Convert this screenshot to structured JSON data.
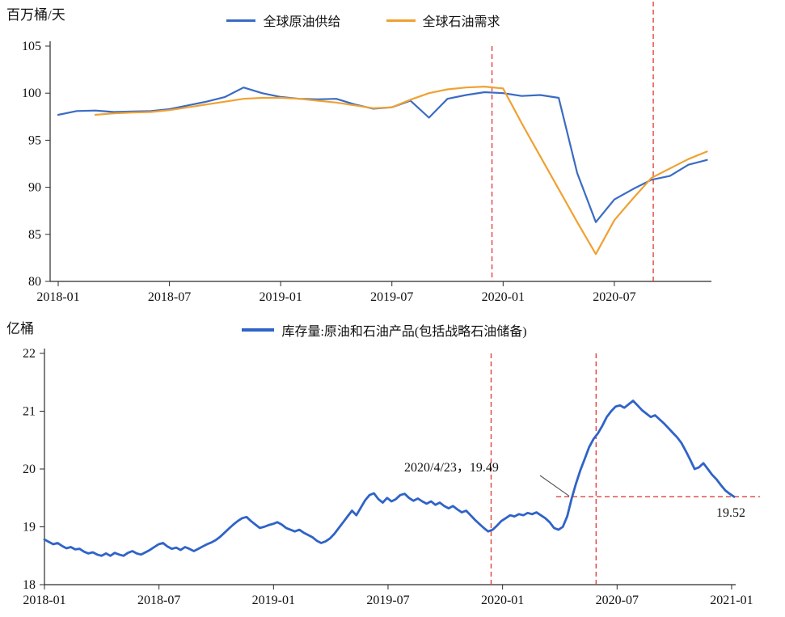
{
  "chart_data": [
    {
      "type": "line",
      "unit_label": "百万桶/天",
      "ylim": [
        80,
        105
      ],
      "yticks": [
        80,
        85,
        90,
        95,
        100,
        105
      ],
      "xticks": [
        {
          "month": 0,
          "label": "2018-01"
        },
        {
          "month": 6,
          "label": "2018-07"
        },
        {
          "month": 12,
          "label": "2019-01"
        },
        {
          "month": 18,
          "label": "2019-07"
        },
        {
          "month": 24,
          "label": "2020-01"
        },
        {
          "month": 30,
          "label": "2020-07"
        }
      ],
      "vline_color": "#e0433c",
      "vlines": [
        {
          "month": 23.4,
          "extends_above": false
        },
        {
          "month": 32.1,
          "extends_above": true
        }
      ],
      "series": [
        {
          "name": "全球原油供给",
          "color": "#3a6bc4",
          "start_month": 0,
          "values": [
            97.7,
            98.1,
            98.15,
            98.0,
            98.05,
            98.1,
            98.3,
            98.7,
            99.1,
            99.6,
            100.6,
            100.0,
            99.6,
            99.4,
            99.35,
            99.4,
            98.8,
            98.35,
            98.5,
            99.2,
            97.4,
            99.4,
            99.8,
            100.1,
            100.0,
            99.7,
            99.8,
            99.5,
            91.5,
            86.3,
            88.7,
            89.8,
            90.8,
            91.2,
            92.4,
            92.9
          ]
        },
        {
          "name": "全球石油需求",
          "color": "#f0a132",
          "start_month": 2,
          "values": [
            97.7,
            97.85,
            97.95,
            98.0,
            98.2,
            98.5,
            98.8,
            99.1,
            99.4,
            99.5,
            99.5,
            99.4,
            99.2,
            99.0,
            98.7,
            98.4,
            98.5,
            99.3,
            100.0,
            100.4,
            100.6,
            100.7,
            100.5,
            96.8,
            93.3,
            89.8,
            86.3,
            82.9,
            86.5,
            88.8,
            91.0,
            92.0,
            93.0,
            93.8
          ]
        }
      ]
    },
    {
      "type": "line",
      "unit_label": "亿桶",
      "ylim": [
        18,
        22
      ],
      "yticks": [
        18,
        19,
        20,
        21,
        22
      ],
      "xticks": [
        {
          "month": 0,
          "label": "2018-01"
        },
        {
          "month": 6,
          "label": "2018-07"
        },
        {
          "month": 12,
          "label": "2019-01"
        },
        {
          "month": 18,
          "label": "2019-07"
        },
        {
          "month": 24,
          "label": "2020-01"
        },
        {
          "month": 30,
          "label": "2020-07"
        },
        {
          "month": 36,
          "label": "2021-01"
        }
      ],
      "vline_color": "#e0433c",
      "vlines": [
        {
          "month": 23.4
        },
        {
          "month": 28.9
        }
      ],
      "hline": {
        "value": 19.52,
        "label": "19.52"
      },
      "annotation": {
        "text": "2020/4/23，19.49",
        "points_to_week": 120,
        "points_to_value": 19.49
      },
      "series": [
        {
          "name": "库存量:原油和石油产品(包括战略石油储备)",
          "color": "#2f63c8",
          "start_week": 0,
          "values": [
            18.78,
            18.74,
            18.7,
            18.72,
            18.67,
            18.63,
            18.65,
            18.61,
            18.62,
            18.57,
            18.54,
            18.56,
            18.52,
            18.5,
            18.54,
            18.5,
            18.55,
            18.52,
            18.5,
            18.55,
            18.58,
            18.54,
            18.52,
            18.56,
            18.6,
            18.65,
            18.7,
            18.72,
            18.66,
            18.62,
            18.64,
            18.6,
            18.65,
            18.62,
            18.58,
            18.62,
            18.66,
            18.7,
            18.73,
            18.77,
            18.83,
            18.9,
            18.97,
            19.04,
            19.1,
            19.15,
            19.17,
            19.1,
            19.04,
            18.98,
            19.0,
            19.03,
            19.05,
            19.08,
            19.04,
            18.98,
            18.95,
            18.92,
            18.95,
            18.9,
            18.86,
            18.82,
            18.76,
            18.72,
            18.75,
            18.8,
            18.88,
            18.98,
            19.08,
            19.18,
            19.28,
            19.2,
            19.33,
            19.46,
            19.55,
            19.58,
            19.48,
            19.42,
            19.5,
            19.44,
            19.48,
            19.55,
            19.57,
            19.5,
            19.45,
            19.49,
            19.44,
            19.4,
            19.44,
            19.38,
            19.42,
            19.36,
            19.32,
            19.36,
            19.3,
            19.25,
            19.28,
            19.2,
            19.12,
            19.05,
            18.98,
            18.92,
            18.95,
            19.02,
            19.1,
            19.15,
            19.2,
            19.18,
            19.22,
            19.2,
            19.24,
            19.22,
            19.25,
            19.2,
            19.15,
            19.08,
            18.98,
            18.95,
            19.0,
            19.18,
            19.49,
            19.75,
            19.98,
            20.18,
            20.38,
            20.52,
            20.62,
            20.75,
            20.9,
            21.0,
            21.08,
            21.1,
            21.06,
            21.12,
            21.18,
            21.1,
            21.02,
            20.96,
            20.9,
            20.93,
            20.86,
            20.79,
            20.71,
            20.63,
            20.55,
            20.45,
            20.31,
            20.16,
            20.0,
            20.03,
            20.1,
            20.0,
            19.9,
            19.82,
            19.72,
            19.63,
            19.57,
            19.52
          ]
        }
      ]
    }
  ]
}
